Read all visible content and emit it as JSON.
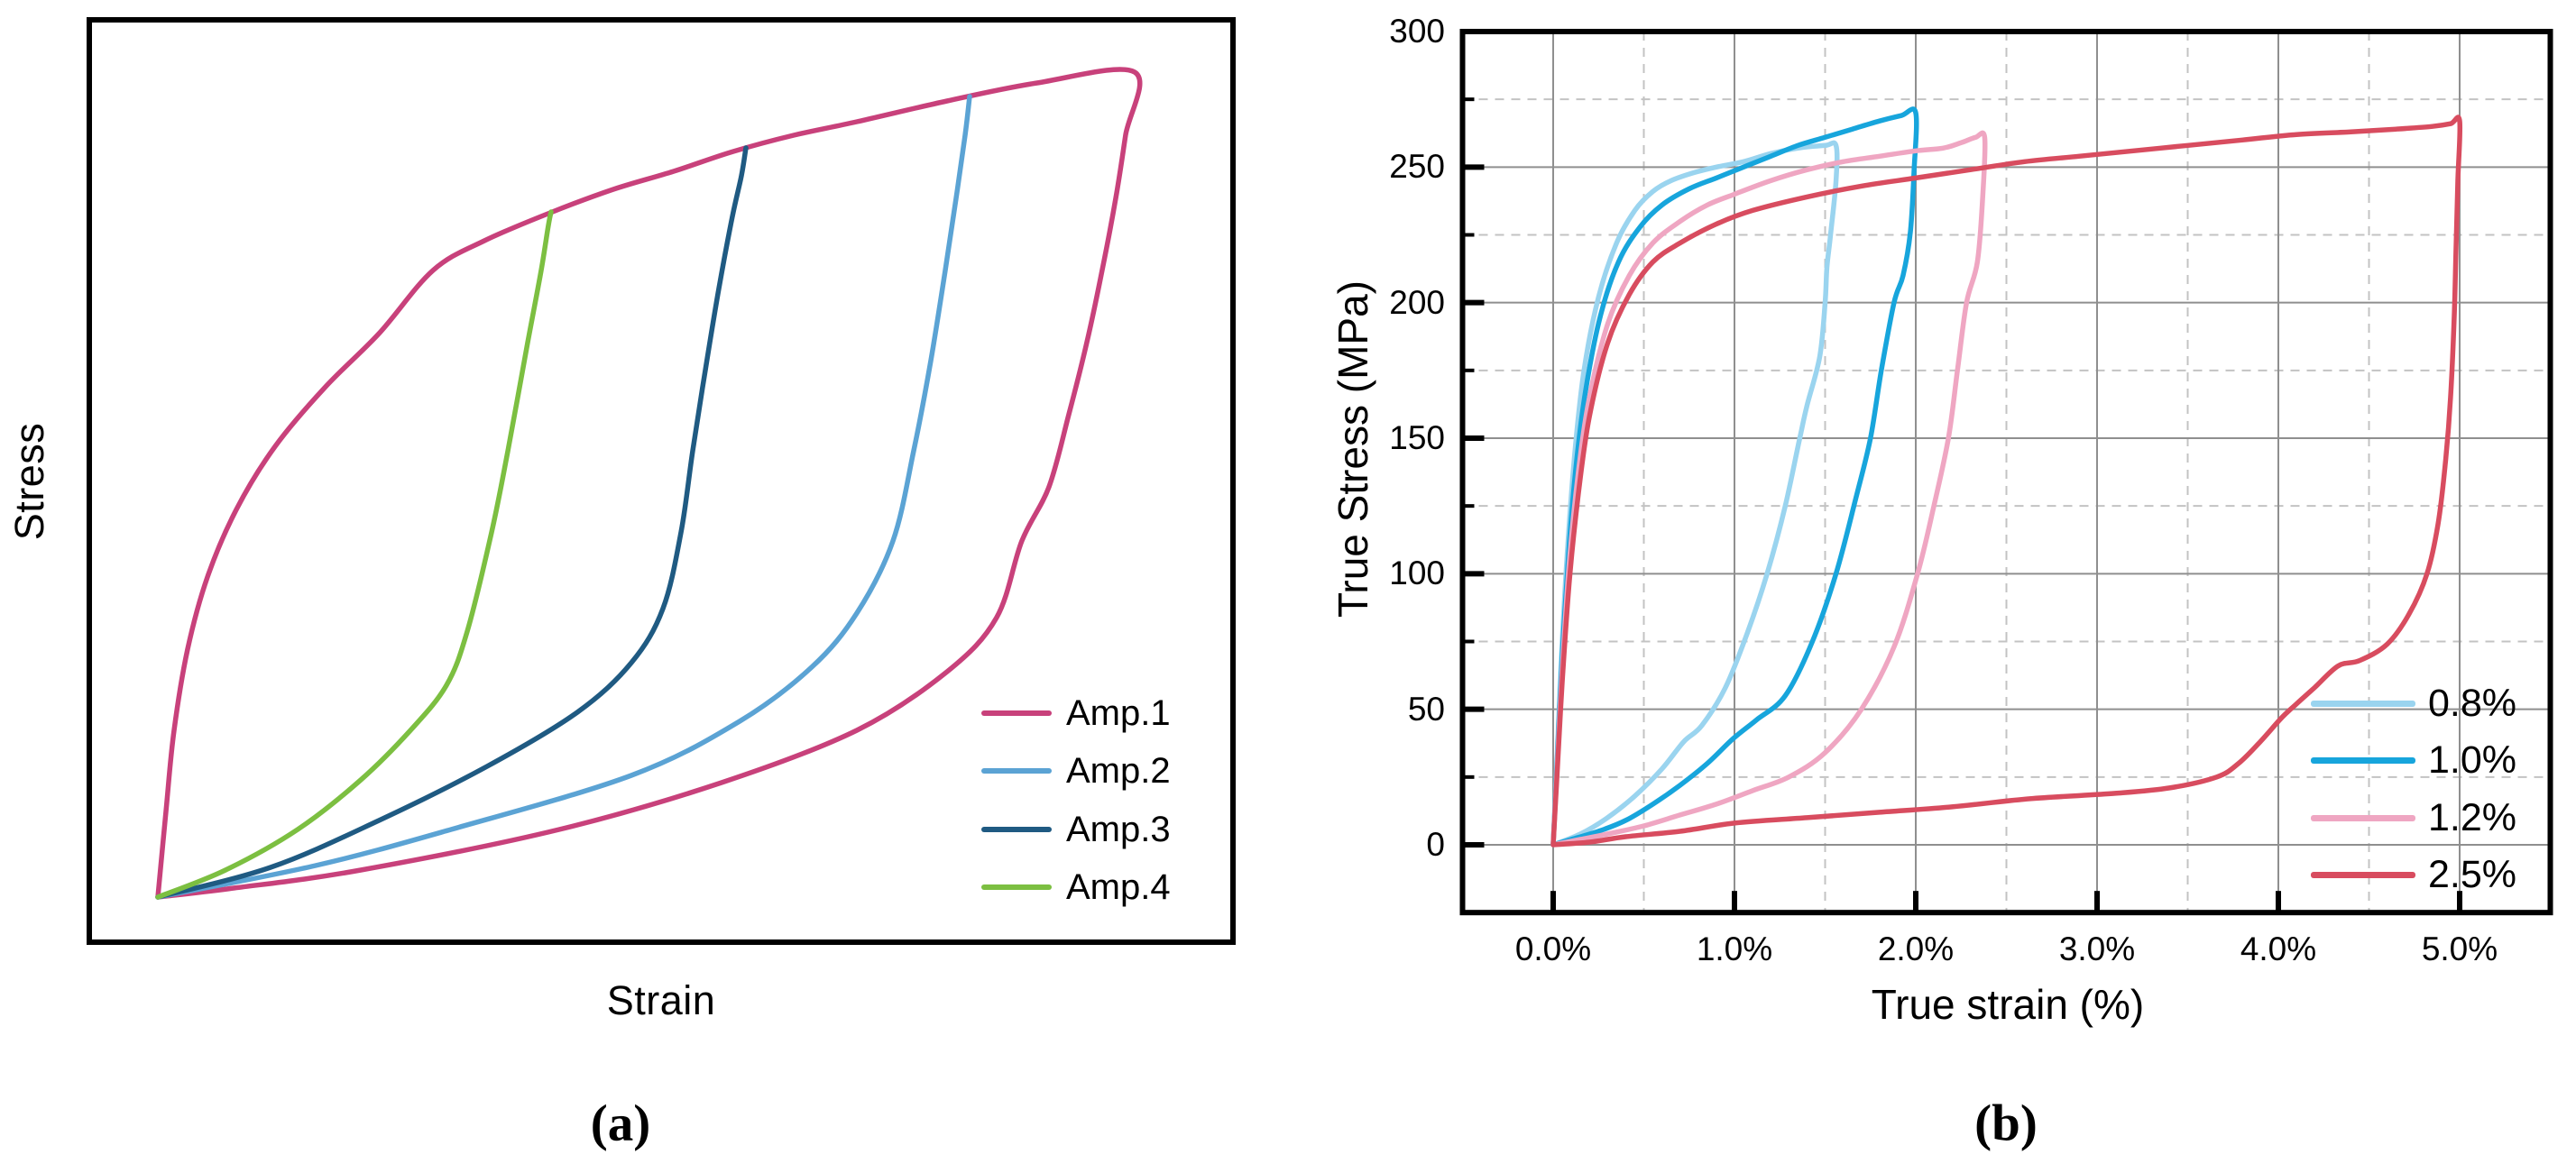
{
  "captions": {
    "a": "(a)",
    "b": "(b)"
  },
  "style": {
    "background": "#ffffff",
    "axis_color": "#000000",
    "grid_major_color": "#8f8f8f",
    "grid_minor_color": "#c3c3c3"
  },
  "chart_data": [
    {
      "type": "line",
      "title": "",
      "xlabel": "Strain",
      "ylabel": "Stress",
      "legend_position": "lower right inside",
      "grid": false,
      "axes_note": "schematic, no tick labels; coordinates are fractions of axis span",
      "xlim": [
        0,
        1
      ],
      "ylim": [
        0,
        1
      ],
      "series": [
        {
          "name": "Amp.1",
          "color": "#c8417b",
          "closed": true,
          "points": [
            [
              0.0599,
              0.0489
            ],
            [
              0.067,
              0.1417
            ],
            [
              0.0741,
              0.2297
            ],
            [
              0.086,
              0.3177
            ],
            [
              0.1033,
              0.3959
            ],
            [
              0.1286,
              0.4692
            ],
            [
              0.1625,
              0.5376
            ],
            [
              0.2058,
              0.6012
            ],
            [
              0.2532,
              0.6598
            ],
            [
              0.3005,
              0.7283
            ],
            [
              0.3454,
              0.7605
            ],
            [
              0.403,
              0.7908
            ],
            [
              0.4582,
              0.8162
            ],
            [
              0.511,
              0.8358
            ],
            [
              0.5631,
              0.8573
            ],
            [
              0.6159,
              0.8749
            ],
            [
              0.6711,
              0.8895
            ],
            [
              0.75,
              0.912
            ],
            [
              0.8288,
              0.9316
            ],
            [
              0.914,
              0.9433
            ],
            [
              0.9061,
              0.8749
            ],
            [
              0.8975,
              0.8065
            ],
            [
              0.8856,
              0.7283
            ],
            [
              0.8722,
              0.65
            ],
            [
              0.8564,
              0.5718
            ],
            [
              0.8391,
              0.4936
            ],
            [
              0.8154,
              0.435
            ],
            [
              0.7933,
              0.3519
            ],
            [
              0.75,
              0.2933
            ],
            [
              0.6711,
              0.2297
            ],
            [
              0.5528,
              0.173
            ],
            [
              0.4109,
              0.1222
            ],
            [
              0.2374,
              0.0782
            ],
            [
              0.127,
              0.0587
            ],
            [
              0.0599,
              0.0489
            ]
          ]
        },
        {
          "name": "Amp.2",
          "color": "#5ba3d4",
          "closed": false,
          "points": [
            [
              0.0599,
              0.0489
            ],
            [
              0.1979,
              0.0831
            ],
            [
              0.3163,
              0.1222
            ],
            [
              0.474,
              0.1808
            ],
            [
              0.5686,
              0.2395
            ],
            [
              0.6317,
              0.2982
            ],
            [
              0.6711,
              0.3568
            ],
            [
              0.7027,
              0.435
            ],
            [
              0.7208,
              0.5327
            ],
            [
              0.7358,
              0.6305
            ],
            [
              0.7484,
              0.7283
            ],
            [
              0.7579,
              0.8065
            ],
            [
              0.7658,
              0.8749
            ],
            [
              0.7697,
              0.9169
            ]
          ]
        },
        {
          "name": "Amp.3",
          "color": "#1f5a82",
          "closed": false,
          "points": [
            [
              0.0599,
              0.0489
            ],
            [
              0.1585,
              0.0811
            ],
            [
              0.2532,
              0.132
            ],
            [
              0.3478,
              0.1906
            ],
            [
              0.4267,
              0.2493
            ],
            [
              0.474,
              0.303
            ],
            [
              0.5016,
              0.3617
            ],
            [
              0.5174,
              0.4448
            ],
            [
              0.5276,
              0.5327
            ],
            [
              0.5387,
              0.6207
            ],
            [
              0.5505,
              0.7087
            ],
            [
              0.5623,
              0.7869
            ],
            [
              0.5702,
              0.8309
            ],
            [
              0.5741,
              0.8612
            ]
          ]
        },
        {
          "name": "Amp.4",
          "color": "#7cbf41",
          "closed": false,
          "points": [
            [
              0.0599,
              0.0489
            ],
            [
              0.1191,
              0.0782
            ],
            [
              0.1822,
              0.1222
            ],
            [
              0.2374,
              0.176
            ],
            [
              0.2808,
              0.2297
            ],
            [
              0.3123,
              0.2786
            ],
            [
              0.3305,
              0.3372
            ],
            [
              0.3518,
              0.4448
            ],
            [
              0.366,
              0.5327
            ],
            [
              0.3833,
              0.65
            ],
            [
              0.3951,
              0.7283
            ],
            [
              0.4014,
              0.7771
            ],
            [
              0.4038,
              0.7918
            ]
          ]
        }
      ]
    },
    {
      "type": "line",
      "title": "",
      "xlabel": "True strain (%)",
      "ylabel": "True Stress (MPa)",
      "legend_position": "lower right inside",
      "grid": "major solid, minor dashed",
      "xlim": [
        -0.5,
        5.5
      ],
      "ylim": [
        -25,
        300
      ],
      "xticks": {
        "values": [
          0,
          1,
          2,
          3,
          4,
          5
        ],
        "labels": [
          "0.0%",
          "1.0%",
          "2.0%",
          "3.0%",
          "4.0%",
          "5.0%"
        ]
      },
      "xminor": [
        0.5,
        1.5,
        2.5,
        3.5,
        4.5
      ],
      "yticks": {
        "values": [
          0,
          50,
          100,
          150,
          200,
          250,
          300
        ],
        "labels": [
          "0",
          "50",
          "100",
          "150",
          "200",
          "250",
          "300"
        ]
      },
      "yminor": [
        25,
        75,
        125,
        175,
        225,
        275
      ],
      "series": [
        {
          "name": "0.8%",
          "color": "#9ad4ef",
          "closed": true,
          "points": [
            [
              0,
              0
            ],
            [
              0.02,
              30
            ],
            [
              0.05,
              75
            ],
            [
              0.08,
              110
            ],
            [
              0.12,
              145
            ],
            [
              0.17,
              175
            ],
            [
              0.25,
              202
            ],
            [
              0.35,
              222
            ],
            [
              0.45,
              234
            ],
            [
              0.55,
              241
            ],
            [
              0.65,
              245
            ],
            [
              0.78,
              248
            ],
            [
              0.9,
              250
            ],
            [
              1.05,
              252
            ],
            [
              1.2,
              255
            ],
            [
              1.35,
              257
            ],
            [
              1.5,
              258
            ],
            [
              1.56,
              258
            ],
            [
              1.56,
              245
            ],
            [
              1.53,
              225
            ],
            [
              1.51,
              213
            ],
            [
              1.5,
              200
            ],
            [
              1.47,
              180
            ],
            [
              1.4,
              162
            ],
            [
              1.36,
              150
            ],
            [
              1.28,
              125
            ],
            [
              1.18,
              100
            ],
            [
              1.07,
              78
            ],
            [
              0.95,
              58
            ],
            [
              0.82,
              44
            ],
            [
              0.72,
              38
            ],
            [
              0.6,
              28
            ],
            [
              0.45,
              18
            ],
            [
              0.3,
              10
            ],
            [
              0.15,
              4
            ],
            [
              0,
              0
            ]
          ]
        },
        {
          "name": "1.0%",
          "color": "#17a5dc",
          "closed": true,
          "points": [
            [
              0,
              0
            ],
            [
              0.02,
              28
            ],
            [
              0.05,
              70
            ],
            [
              0.09,
              112
            ],
            [
              0.13,
              142
            ],
            [
              0.18,
              168
            ],
            [
              0.26,
              195
            ],
            [
              0.36,
              215
            ],
            [
              0.48,
              228
            ],
            [
              0.6,
              236
            ],
            [
              0.75,
              242
            ],
            [
              0.9,
              246
            ],
            [
              1.05,
              250
            ],
            [
              1.2,
              254
            ],
            [
              1.35,
              258
            ],
            [
              1.5,
              261
            ],
            [
              1.65,
              264
            ],
            [
              1.8,
              267
            ],
            [
              1.92,
              269
            ],
            [
              2.0,
              270
            ],
            [
              1.99,
              248
            ],
            [
              1.97,
              226
            ],
            [
              1.93,
              210
            ],
            [
              1.88,
              200
            ],
            [
              1.81,
              175
            ],
            [
              1.75,
              150
            ],
            [
              1.67,
              128
            ],
            [
              1.56,
              100
            ],
            [
              1.43,
              75
            ],
            [
              1.28,
              55
            ],
            [
              1.12,
              46
            ],
            [
              0.99,
              39
            ],
            [
              0.85,
              30
            ],
            [
              0.7,
              22
            ],
            [
              0.55,
              15
            ],
            [
              0.4,
              9
            ],
            [
              0.25,
              5
            ],
            [
              0.1,
              2
            ],
            [
              0,
              0
            ]
          ]
        },
        {
          "name": "1.2%",
          "color": "#efa6c2",
          "closed": true,
          "points": [
            [
              0,
              0
            ],
            [
              0.02,
              26
            ],
            [
              0.05,
              65
            ],
            [
              0.09,
              105
            ],
            [
              0.14,
              138
            ],
            [
              0.2,
              165
            ],
            [
              0.3,
              192
            ],
            [
              0.42,
              210
            ],
            [
              0.55,
              222
            ],
            [
              0.7,
              230
            ],
            [
              0.85,
              236
            ],
            [
              1.0,
              240
            ],
            [
              1.2,
              245
            ],
            [
              1.4,
              249
            ],
            [
              1.6,
              252
            ],
            [
              1.8,
              254
            ],
            [
              2.0,
              256
            ],
            [
              2.15,
              257
            ],
            [
              2.25,
              259
            ],
            [
              2.33,
              261
            ],
            [
              2.38,
              261
            ],
            [
              2.37,
              240
            ],
            [
              2.34,
              215
            ],
            [
              2.28,
              200
            ],
            [
              2.23,
              175
            ],
            [
              2.18,
              150
            ],
            [
              2.1,
              125
            ],
            [
              2.01,
              100
            ],
            [
              1.88,
              73
            ],
            [
              1.7,
              50
            ],
            [
              1.5,
              34
            ],
            [
              1.3,
              25
            ],
            [
              1.1,
              20
            ],
            [
              0.9,
              15
            ],
            [
              0.7,
              11
            ],
            [
              0.5,
              7
            ],
            [
              0.3,
              4
            ],
            [
              0.15,
              2
            ],
            [
              0,
              0
            ]
          ]
        },
        {
          "name": "2.5%",
          "color": "#d84c5f",
          "closed": true,
          "points": [
            [
              0,
              0
            ],
            [
              0.02,
              24
            ],
            [
              0.05,
              60
            ],
            [
              0.09,
              98
            ],
            [
              0.14,
              130
            ],
            [
              0.2,
              158
            ],
            [
              0.3,
              185
            ],
            [
              0.42,
              203
            ],
            [
              0.55,
              215
            ],
            [
              0.7,
              222
            ],
            [
              0.9,
              229
            ],
            [
              1.1,
              234
            ],
            [
              1.4,
              239
            ],
            [
              1.7,
              243
            ],
            [
              2.0,
              246
            ],
            [
              2.3,
              249
            ],
            [
              2.6,
              252
            ],
            [
              2.9,
              254
            ],
            [
              3.2,
              256
            ],
            [
              3.5,
              258
            ],
            [
              3.8,
              260
            ],
            [
              4.1,
              262
            ],
            [
              4.4,
              263
            ],
            [
              4.65,
              264
            ],
            [
              4.85,
              265
            ],
            [
              4.95,
              266
            ],
            [
              5.0,
              267
            ],
            [
              4.99,
              245
            ],
            [
              4.98,
              220
            ],
            [
              4.97,
              195
            ],
            [
              4.95,
              165
            ],
            [
              4.92,
              140
            ],
            [
              4.88,
              118
            ],
            [
              4.82,
              100
            ],
            [
              4.72,
              85
            ],
            [
              4.6,
              74
            ],
            [
              4.45,
              68
            ],
            [
              4.33,
              66
            ],
            [
              4.2,
              58
            ],
            [
              4.1,
              52
            ],
            [
              4.02,
              47
            ],
            [
              3.9,
              38
            ],
            [
              3.78,
              30
            ],
            [
              3.66,
              25
            ],
            [
              3.4,
              21
            ],
            [
              3.1,
              19
            ],
            [
              2.63,
              17
            ],
            [
              2.2,
              14
            ],
            [
              1.8,
              12
            ],
            [
              1.4,
              10
            ],
            [
              1.0,
              8
            ],
            [
              0.7,
              5
            ],
            [
              0.4,
              3
            ],
            [
              0.2,
              1
            ],
            [
              0,
              0
            ]
          ]
        }
      ]
    }
  ]
}
